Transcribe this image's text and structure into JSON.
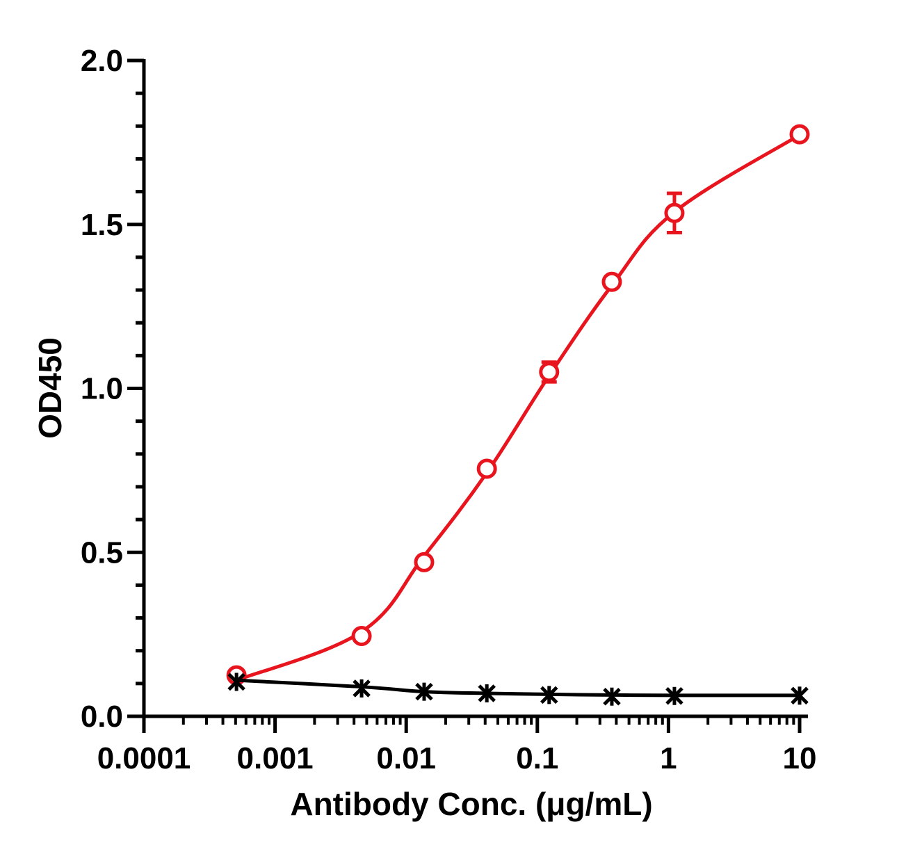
{
  "chart_data": {
    "type": "scatter",
    "title": "",
    "xlabel": "Antibody Conc. (μg/mL)",
    "ylabel": "OD450",
    "x_scale": "log",
    "xlim": [
      0.0001,
      10
    ],
    "ylim": [
      0,
      2.0
    ],
    "x_ticks": [
      "0.0001",
      "0.001",
      "0.01",
      "0.1",
      "1",
      "10"
    ],
    "y_ticks": [
      "0.0",
      "0.5",
      "1.0",
      "1.5",
      "2.0"
    ],
    "grid": false,
    "legend": "none",
    "series": [
      {
        "marker": "open-circle",
        "color": "#e8141e",
        "fit": "sigmoidal",
        "x": [
          0.000508,
          0.00457,
          0.0137,
          0.0412,
          0.123,
          0.37,
          1.11,
          10
        ],
        "y": [
          0.125,
          0.245,
          0.47,
          0.755,
          1.05,
          1.325,
          1.535,
          1.775
        ],
        "error": [
          0,
          0,
          0,
          0,
          0.03,
          0,
          0.06,
          0
        ],
        "curve_y": [
          0.11,
          0.258,
          0.489,
          0.743,
          1.039,
          1.314,
          1.538,
          1.773
        ]
      },
      {
        "marker": "asterisk",
        "color": "#000000",
        "fit": "line",
        "x": [
          0.000508,
          0.00457,
          0.0137,
          0.0412,
          0.123,
          0.37,
          1.11,
          10
        ],
        "y": [
          0.105,
          0.085,
          0.075,
          0.07,
          0.065,
          0.06,
          0.062,
          0.063
        ],
        "error": [
          0,
          0,
          0,
          0,
          0,
          0,
          0,
          0
        ],
        "curve_y": [
          0.11,
          0.09,
          0.075,
          0.07,
          0.067,
          0.065,
          0.064,
          0.064
        ]
      }
    ]
  }
}
